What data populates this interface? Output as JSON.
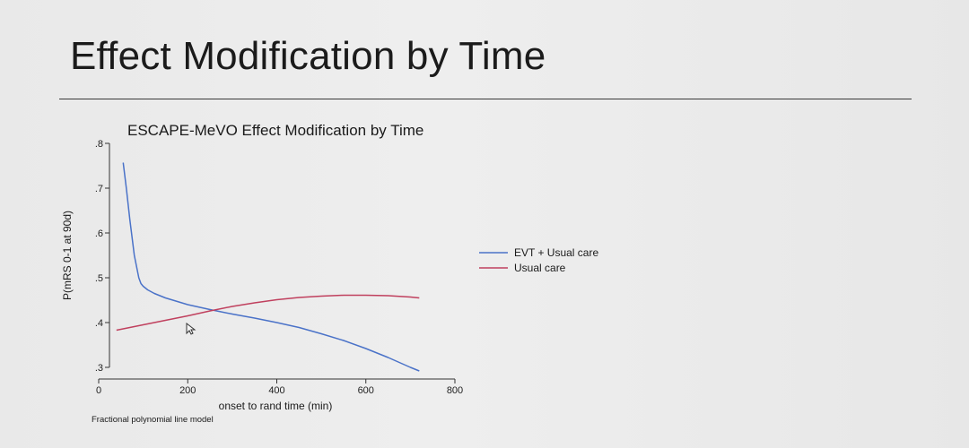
{
  "slide": {
    "title": "Effect Modification by Time"
  },
  "chart_data": {
    "type": "line",
    "title": "ESCAPE-MeVO Effect Modification by Time",
    "xlabel": "onset to rand time (min)",
    "ylabel": "P(mRS 0-1 at 90d)",
    "note": "Fractional polynomial line model",
    "xlim": [
      0,
      800
    ],
    "ylim": [
      0.3,
      0.8
    ],
    "xticks": [
      0,
      200,
      400,
      600,
      800
    ],
    "yticks": [
      0.3,
      0.4,
      0.5,
      0.6,
      0.7,
      0.8
    ],
    "xtick_labels": [
      "0",
      "200",
      "400",
      "600",
      "800"
    ],
    "ytick_labels": [
      ".3",
      ".4",
      ".5",
      ".6",
      ".7",
      ".8"
    ],
    "grid": false,
    "legend_position": "right",
    "series": [
      {
        "name": "EVT + Usual care",
        "color": "#4a72c8",
        "x": [
          55,
          62,
          70,
          80,
          90,
          95,
          100,
          110,
          125,
          150,
          200,
          250,
          300,
          350,
          400,
          450,
          500,
          550,
          600,
          650,
          700,
          720
        ],
        "y": [
          0.757,
          0.7,
          0.63,
          0.55,
          0.5,
          0.487,
          0.481,
          0.473,
          0.465,
          0.455,
          0.44,
          0.429,
          0.419,
          0.41,
          0.4,
          0.389,
          0.375,
          0.36,
          0.342,
          0.322,
          0.3,
          0.292
        ]
      },
      {
        "name": "Usual care",
        "color": "#c0405e",
        "x": [
          40,
          100,
          150,
          200,
          250,
          300,
          350,
          400,
          450,
          500,
          550,
          600,
          650,
          700,
          720
        ],
        "y": [
          0.383,
          0.395,
          0.405,
          0.415,
          0.426,
          0.436,
          0.444,
          0.451,
          0.456,
          0.459,
          0.461,
          0.461,
          0.46,
          0.457,
          0.455
        ]
      }
    ]
  }
}
